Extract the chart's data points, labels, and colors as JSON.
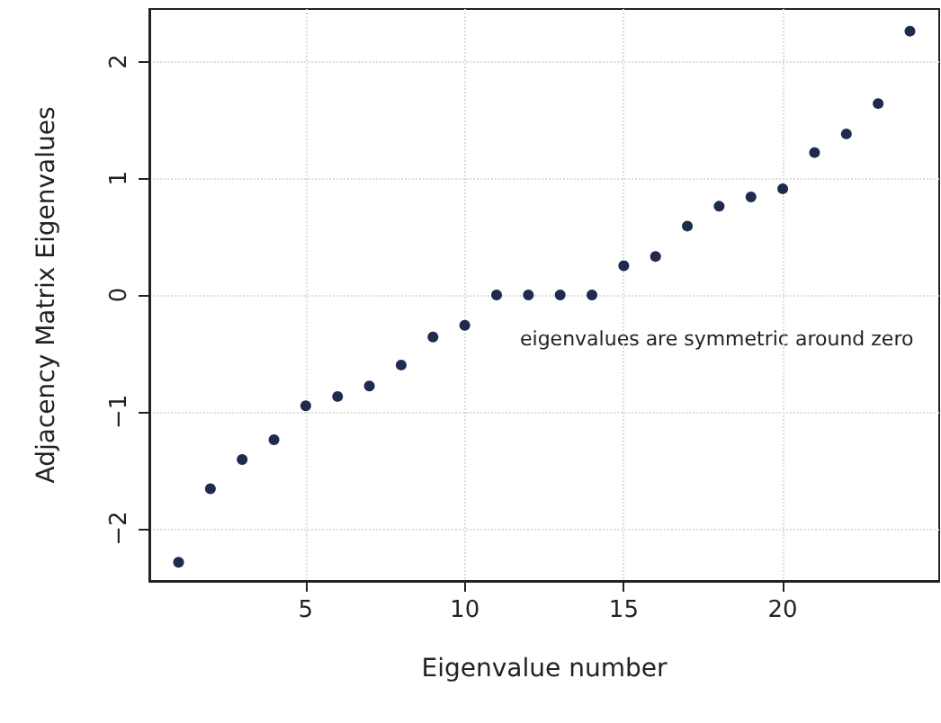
{
  "chart_data": {
    "type": "scatter",
    "xlabel": "Eigenvalue number",
    "ylabel": "Adjacency Matrix Eigenvalues",
    "x": [
      1,
      2,
      3,
      4,
      5,
      6,
      7,
      8,
      9,
      10,
      11,
      12,
      13,
      14,
      15,
      16,
      17,
      18,
      19,
      20,
      21,
      22,
      23,
      24
    ],
    "series": [
      {
        "color": "#1f2a4f",
        "values": [
          -2.29,
          -1.66,
          -1.41,
          -1.24,
          -0.95,
          -0.87,
          -0.78,
          -0.6,
          -0.36,
          -0.26,
          0,
          0,
          0,
          0,
          0.25,
          0.33,
          0.59,
          0.76,
          0.84,
          0.91,
          1.22,
          1.38,
          1.64,
          2.26
        ]
      }
    ],
    "xlim": [
      0.08,
      24.92
    ],
    "ylim": [
      -2.45,
      2.45
    ],
    "xticks": [
      5,
      10,
      15,
      20
    ],
    "yticks": [
      -2,
      -1,
      0,
      1,
      2
    ],
    "grid": true,
    "marker": "circle",
    "annotations": [
      "eigenvalues are symmetric around zero"
    ]
  }
}
